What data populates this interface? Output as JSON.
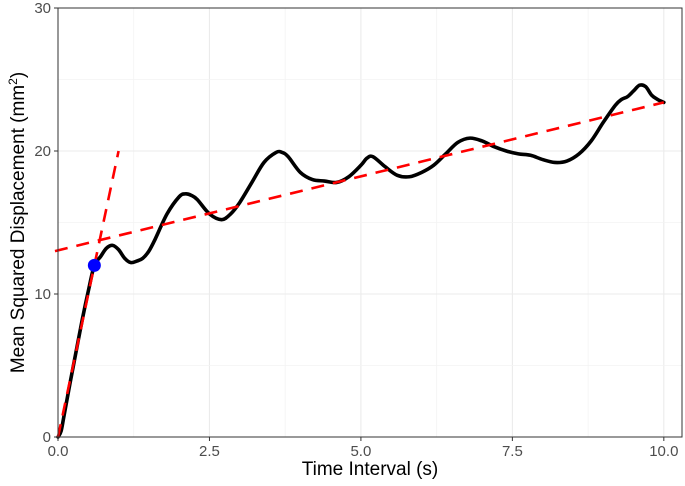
{
  "chart_data": {
    "type": "line",
    "xlabel": "Time Interval (s)",
    "ylabel_main": "Mean Squared Displacement (mm",
    "ylabel_sup": "2",
    "ylabel_close": ")",
    "xlim": [
      0,
      10.3
    ],
    "ylim": [
      0,
      30
    ],
    "x_ticks": [
      0,
      2.5,
      5,
      7.5,
      10
    ],
    "x_tick_labels": [
      "0.0",
      "2.5",
      "5.0",
      "7.5",
      "10.0"
    ],
    "y_ticks": [
      0,
      10,
      20,
      30
    ],
    "y_tick_labels": [
      "0",
      "10",
      "20",
      "30"
    ],
    "grid": true,
    "series": [
      {
        "role": "msd-curve",
        "color": "#000000",
        "style": "solid",
        "x": [
          0.0,
          0.05,
          0.1,
          0.2,
          0.3,
          0.4,
          0.5,
          0.6,
          0.7,
          0.8,
          0.9,
          1.0,
          1.1,
          1.2,
          1.3,
          1.4,
          1.5,
          1.6,
          1.8,
          2.0,
          2.1,
          2.2,
          2.3,
          2.5,
          2.7,
          2.85,
          3.0,
          3.2,
          3.4,
          3.6,
          3.7,
          3.8,
          4.0,
          4.2,
          4.4,
          4.6,
          4.8,
          5.0,
          5.1,
          5.2,
          5.4,
          5.6,
          5.8,
          6.0,
          6.2,
          6.4,
          6.6,
          6.8,
          7.0,
          7.2,
          7.4,
          7.6,
          7.8,
          8.0,
          8.2,
          8.4,
          8.6,
          8.8,
          9.0,
          9.2,
          9.3,
          9.4,
          9.5,
          9.6,
          9.7,
          9.8,
          9.9,
          10.0
        ],
        "y": [
          0.0,
          0.4,
          1.5,
          3.8,
          6.0,
          8.2,
          10.2,
          12.0,
          12.6,
          13.2,
          13.4,
          13.1,
          12.5,
          12.2,
          12.3,
          12.5,
          13.0,
          13.8,
          15.6,
          16.8,
          17.0,
          16.9,
          16.6,
          15.6,
          15.2,
          15.6,
          16.4,
          17.8,
          19.2,
          19.9,
          19.9,
          19.6,
          18.5,
          18.0,
          17.9,
          17.8,
          18.2,
          19.0,
          19.5,
          19.6,
          18.9,
          18.3,
          18.2,
          18.5,
          19.0,
          19.8,
          20.6,
          20.9,
          20.7,
          20.3,
          20.0,
          19.8,
          19.7,
          19.4,
          19.2,
          19.3,
          19.8,
          20.7,
          22.0,
          23.2,
          23.6,
          23.8,
          24.2,
          24.6,
          24.5,
          23.9,
          23.6,
          23.4
        ]
      },
      {
        "role": "short-time-fit",
        "color": "#ff0000",
        "style": "dashed",
        "x": [
          0.0,
          1.0
        ],
        "y": [
          0.0,
          20.0
        ]
      },
      {
        "role": "long-time-fit",
        "color": "#ff0000",
        "style": "dashed",
        "x": [
          -0.05,
          10.0
        ],
        "y": [
          13.0,
          23.4
        ]
      }
    ],
    "marker": {
      "x": 0.6,
      "y": 12.0,
      "color": "#0000ff"
    }
  }
}
